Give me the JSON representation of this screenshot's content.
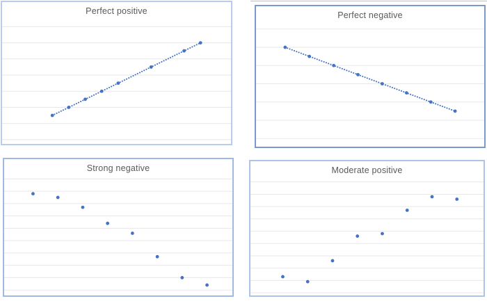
{
  "colors": {
    "marker": "#4472c4",
    "trendline": "#4472c4",
    "gridline": "#e7e7e7",
    "title": "#595959",
    "divider": "#c0c0c0",
    "page_background": "#ffffff"
  },
  "chart_data": [
    {
      "type": "scatter",
      "title": "Perfect positive",
      "x": [
        1,
        2,
        3,
        4,
        5,
        7,
        9,
        10
      ],
      "y": [
        1,
        2,
        3,
        4,
        5,
        7,
        9,
        10
      ],
      "xlim": [
        -2.05,
        11.85
      ],
      "ylim": [
        -2.53,
        15.05
      ],
      "gridlines": [
        -2,
        0,
        2,
        4,
        6,
        8,
        10,
        12
      ],
      "trendline": true,
      "legend": "none",
      "axis_labels": "none",
      "border_color": "#b9ccee"
    },
    {
      "type": "scatter",
      "title": "Perfect negative",
      "x": [
        1,
        2,
        3,
        4,
        5,
        6,
        7,
        8
      ],
      "y": [
        8,
        7,
        6,
        5,
        4,
        3,
        2,
        1
      ],
      "xlim": [
        -0.2,
        9.2
      ],
      "ylim": [
        -2.9,
        12.5
      ],
      "gridlines": [
        -2,
        0,
        2,
        4,
        6,
        8,
        10
      ],
      "trendline": true,
      "legend": "none",
      "axis_labels": "none",
      "border_color": "#7b99d1"
    },
    {
      "type": "scatter",
      "title": "Strong negative",
      "x": [
        1,
        2,
        3,
        4,
        5,
        6,
        7,
        8
      ],
      "y": [
        7.8,
        7.5,
        6.7,
        5.4,
        4.6,
        2.7,
        1.0,
        0.4
      ],
      "xlim": [
        -0.16,
        9.02
      ],
      "ylim": [
        -0.44,
        10.6
      ],
      "gridlines": [
        0,
        1,
        2,
        3,
        4,
        5,
        6,
        7,
        8,
        9
      ],
      "trendline": false,
      "legend": "none",
      "axis_labels": "none",
      "border_color": "#9fb9e3"
    },
    {
      "type": "scatter",
      "title": "Moderate positive",
      "x": [
        1,
        2,
        3,
        4,
        5,
        6,
        7,
        8
      ],
      "y": [
        1.3,
        0.9,
        2.6,
        4.6,
        4.8,
        6.7,
        7.8,
        7.6
      ],
      "xlim": [
        -0.3,
        9.07
      ],
      "ylim": [
        -0.22,
        10.68
      ],
      "gridlines": [
        0,
        1,
        2,
        3,
        4,
        5,
        6,
        7,
        8,
        9
      ],
      "trendline": false,
      "legend": "none",
      "axis_labels": "none",
      "border_color": "#aec3e8"
    }
  ]
}
